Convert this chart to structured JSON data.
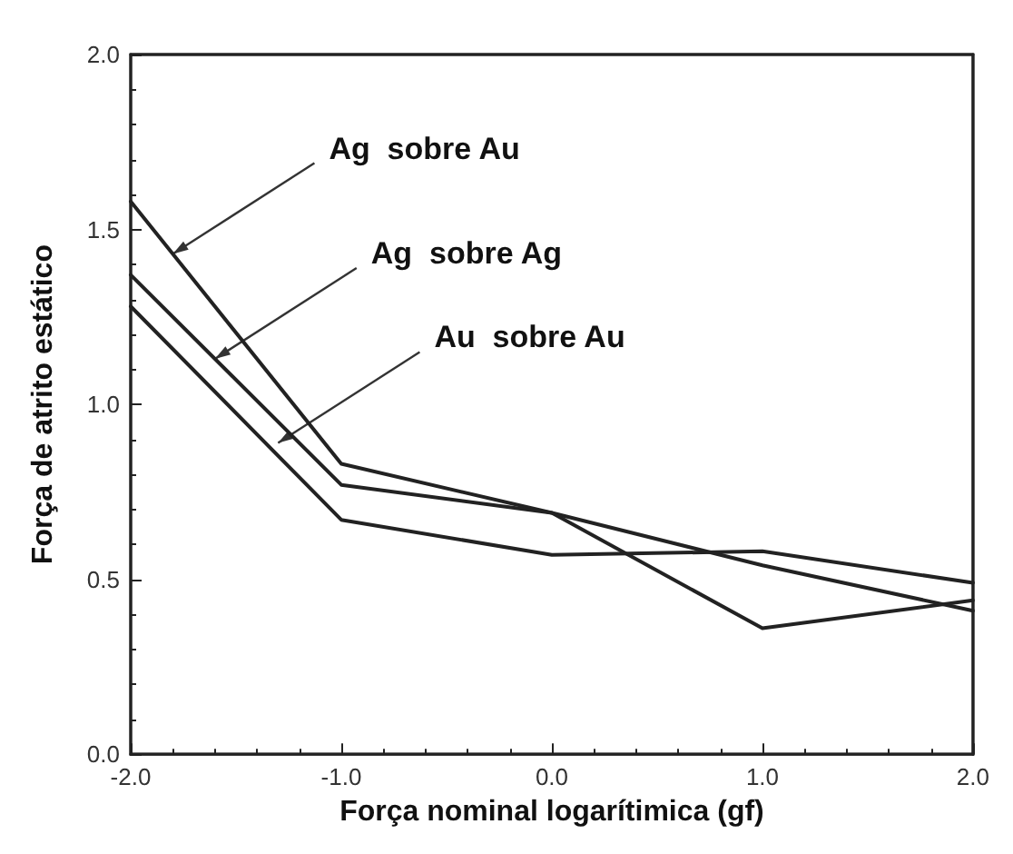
{
  "chart_data": {
    "type": "line",
    "xlabel": "Força nominal logarítimica (gf)",
    "ylabel": "Força de atrito estático",
    "x": [
      -2,
      -1,
      0,
      1,
      2
    ],
    "series": [
      {
        "color": "#222222",
        "values": [
          1.58,
          0.83,
          0.69,
          0.36,
          0.44
        ]
      },
      {
        "color": "#222222",
        "values": [
          1.37,
          0.77,
          0.69,
          0.54,
          0.41
        ]
      },
      {
        "color": "#222222",
        "values": [
          1.28,
          0.67,
          0.57,
          0.58,
          0.49
        ]
      }
    ],
    "xlim": [
      -2,
      2
    ],
    "ylim": [
      0,
      2
    ],
    "xticks": [
      {
        "value": -2,
        "label": "-2.0"
      },
      {
        "value": -1,
        "label": "-1.0"
      },
      {
        "value": 0,
        "label": "0.0"
      },
      {
        "value": 1,
        "label": "1.0"
      },
      {
        "value": 2,
        "label": "2.0"
      }
    ],
    "yticks": [
      {
        "value": 0,
        "label": "0.0"
      },
      {
        "value": 0.5,
        "label": "0.5"
      },
      {
        "value": 1,
        "label": "1.0"
      },
      {
        "value": 1.5,
        "label": "1.5"
      },
      {
        "value": 2,
        "label": "2.0"
      }
    ],
    "annotations": [
      {
        "text": "Ag  sobre Au",
        "x": -1.8,
        "y": 1.43
      },
      {
        "text": "Ag  sobre Ag",
        "x": -1.6,
        "y": 1.13
      },
      {
        "text": "Au  sobre Au",
        "x": -1.3,
        "y": 0.89
      }
    ],
    "marker": "none",
    "line_style": "solid"
  }
}
